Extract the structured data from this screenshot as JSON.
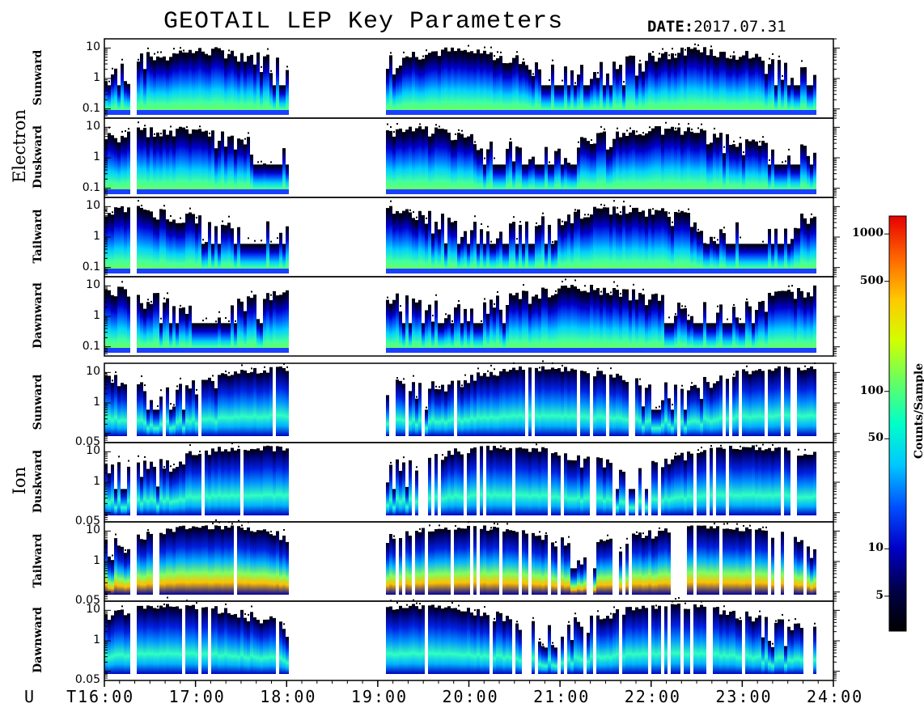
{
  "header": {
    "title": "GEOTAIL LEP Key Parameters",
    "date_key": "DATE:",
    "date_value": "2017.07.31"
  },
  "groups": [
    {
      "label": "Electron"
    },
    {
      "label": "Ion"
    }
  ],
  "x_axis": {
    "label": "U T",
    "ticks": [
      "16:00",
      "17:00",
      "18:00",
      "19:00",
      "20:00",
      "21:00",
      "22:00",
      "23:00",
      "24:00"
    ]
  },
  "colorbar": {
    "title": "Counts/Sample",
    "scale": "log",
    "range": [
      3,
      1300
    ],
    "ticks": [
      "1000",
      "500",
      "100",
      "50",
      "10",
      "5"
    ],
    "tick_values": [
      1000,
      500,
      100,
      50,
      10,
      5
    ],
    "colormap": [
      "#000000",
      "#00004a",
      "#0000c8",
      "#0050ff",
      "#00c8ff",
      "#00ffc8",
      "#64ff64",
      "#d2ff00",
      "#ffc800",
      "#ff6400",
      "#e60000"
    ]
  },
  "chart_data": {
    "type": "heatmap",
    "title": "GEOTAIL LEP Key Parameters",
    "date": "2017.07.31",
    "xlabel": "U T",
    "xlim": [
      "16:00",
      "24:00"
    ],
    "data_gaps_ut": [
      [
        "16:15",
        "16:20"
      ],
      [
        "18:00",
        "19:05"
      ]
    ],
    "yscale": "log",
    "panels": [
      {
        "group": "Electron",
        "direction": "Sunward",
        "ylim": [
          0.05,
          20
        ],
        "yticks": [
          "10",
          "1",
          "0.1"
        ],
        "ytick_values": [
          10,
          1,
          0.1
        ]
      },
      {
        "group": "Electron",
        "direction": "Duskward",
        "ylim": [
          0.05,
          20
        ],
        "yticks": [
          "10",
          "1",
          "0.1"
        ],
        "ytick_values": [
          10,
          1,
          0.1
        ]
      },
      {
        "group": "Electron",
        "direction": "Tailward",
        "ylim": [
          0.05,
          20
        ],
        "yticks": [
          "10",
          "1",
          "0.1"
        ],
        "ytick_values": [
          10,
          1,
          0.1
        ]
      },
      {
        "group": "Electron",
        "direction": "Dawnward",
        "ylim": [
          0.05,
          20
        ],
        "yticks": [
          "10",
          "1",
          "0.1"
        ],
        "ytick_values": [
          10,
          1,
          0.1
        ]
      },
      {
        "group": "Ion",
        "direction": "Sunward",
        "ylim": [
          0.05,
          20
        ],
        "yticks": [
          "10",
          "1",
          "0.05"
        ],
        "ytick_values": [
          10,
          1,
          0.05
        ]
      },
      {
        "group": "Ion",
        "direction": "Duskward",
        "ylim": [
          0.05,
          20
        ],
        "yticks": [
          "10",
          "1",
          "0.05"
        ],
        "ytick_values": [
          10,
          1,
          0.05
        ]
      },
      {
        "group": "Ion",
        "direction": "Tailward",
        "ylim": [
          0.05,
          20
        ],
        "yticks": [
          "10",
          "1",
          "0.05"
        ],
        "ytick_values": [
          10,
          1,
          0.05
        ]
      },
      {
        "group": "Ion",
        "direction": "Dawnward",
        "ylim": [
          0.05,
          20
        ],
        "yticks": [
          "10",
          "1",
          "0.05"
        ],
        "ytick_values": [
          10,
          1,
          0.05
        ]
      }
    ]
  }
}
